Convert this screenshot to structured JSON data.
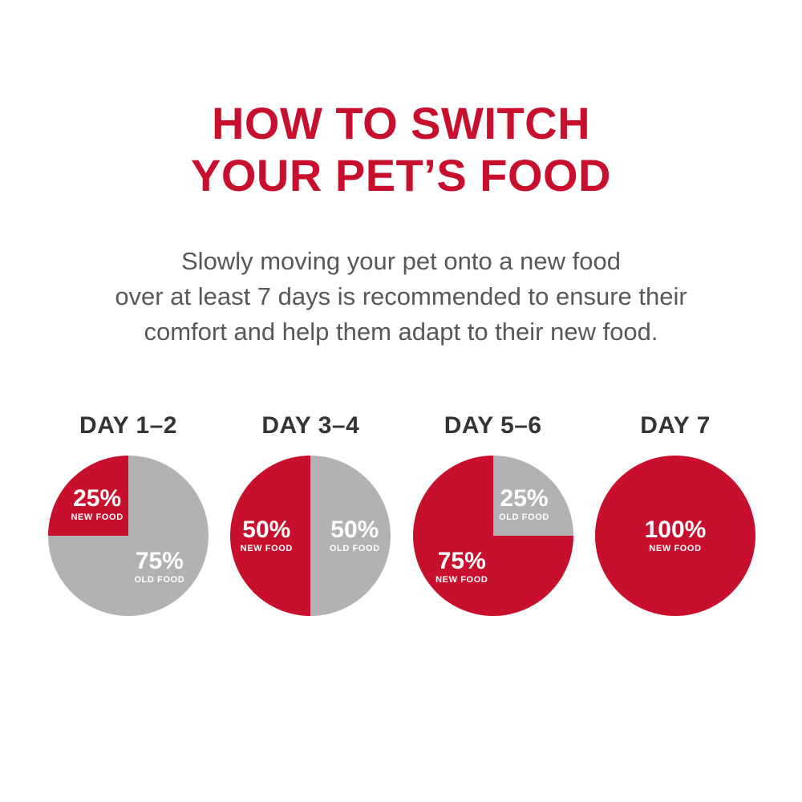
{
  "page": {
    "title_lines": [
      "HOW TO SWITCH",
      "YOUR PET’S FOOD"
    ],
    "subtitle_lines": [
      "Slowly moving your pet onto a new food",
      "over at least 7 days is recommended to ensure their",
      "comfort and help them adapt to their new food."
    ]
  },
  "colors": {
    "accent_red": "#c8102e",
    "pie_gray": "#b2b2b4",
    "subtitle_gray": "#57585c",
    "day_label_dark": "#343436",
    "logo_maroon": "#7a2531"
  },
  "footer": {
    "logo_icon": "royal-canin-emblem",
    "divider": "red-horizontal-rule"
  },
  "chart_data": [
    {
      "type": "pie",
      "title": "DAY 1–2",
      "start_angle": 0,
      "slices": [
        {
          "label": "OLD FOOD",
          "value": 75,
          "pct_label": "75%",
          "color": "#b2b2b4"
        },
        {
          "label": "NEW FOOD",
          "value": 25,
          "pct_label": "25%",
          "color": "#c8102e"
        }
      ]
    },
    {
      "type": "pie",
      "title": "DAY 3–4",
      "start_angle": 180,
      "slices": [
        {
          "label": "NEW FOOD",
          "value": 50,
          "pct_label": "50%",
          "color": "#c8102e"
        },
        {
          "label": "OLD FOOD",
          "value": 50,
          "pct_label": "50%",
          "color": "#b2b2b4"
        }
      ]
    },
    {
      "type": "pie",
      "title": "DAY 5–6",
      "start_angle": 0,
      "slices": [
        {
          "label": "OLD FOOD",
          "value": 25,
          "pct_label": "25%",
          "color": "#b2b2b4"
        },
        {
          "label": "NEW FOOD",
          "value": 75,
          "pct_label": "75%",
          "color": "#c8102e"
        }
      ]
    },
    {
      "type": "pie",
      "title": "DAY 7",
      "start_angle": 0,
      "slices": [
        {
          "label": "NEW FOOD",
          "value": 100,
          "pct_label": "100%",
          "color": "#c8102e"
        }
      ]
    }
  ]
}
